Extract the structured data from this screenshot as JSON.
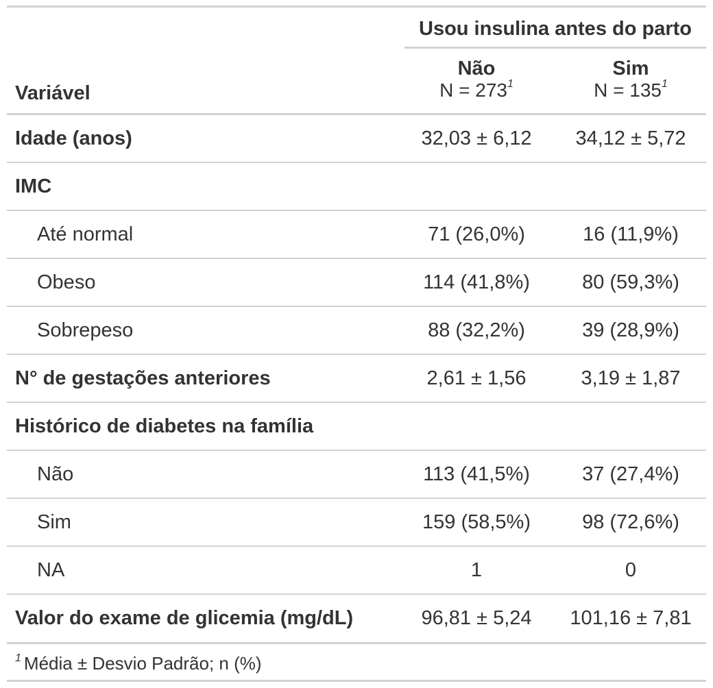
{
  "table": {
    "spanner": "Usou insulina antes do parto",
    "variable_header": "Variável",
    "columns": [
      {
        "name": "Não",
        "n_label": "N = 273",
        "footnote_mark": "1"
      },
      {
        "name": "Sim",
        "n_label": "N = 135",
        "footnote_mark": "1"
      }
    ],
    "rows": [
      {
        "label": "Idade (anos)",
        "style": "bold",
        "nao": "32,03 ± 6,12",
        "sim": "34,12 ± 5,72"
      },
      {
        "label": "IMC",
        "style": "bold",
        "nao": "",
        "sim": ""
      },
      {
        "label": "Até normal",
        "style": "indent",
        "nao": "71 (26,0%)",
        "sim": "16 (11,9%)"
      },
      {
        "label": "Obeso",
        "style": "indent",
        "nao": "114 (41,8%)",
        "sim": "80 (59,3%)"
      },
      {
        "label": "Sobrepeso",
        "style": "indent",
        "nao": "88 (32,2%)",
        "sim": "39 (28,9%)"
      },
      {
        "label": "N° de gestações anteriores",
        "style": "bold",
        "nao": "2,61 ± 1,56",
        "sim": "3,19 ± 1,87"
      },
      {
        "label": "Histórico de diabetes na família",
        "style": "bold",
        "nao": "",
        "sim": ""
      },
      {
        "label": "Não",
        "style": "indent",
        "nao": "113 (41,5%)",
        "sim": "37 (27,4%)"
      },
      {
        "label": "Sim",
        "style": "indent",
        "nao": "159 (58,5%)",
        "sim": "98 (72,6%)"
      },
      {
        "label": "NA",
        "style": "indent",
        "nao": "1",
        "sim": "0"
      },
      {
        "label": "Valor do exame de glicemia (mg/dL)",
        "style": "bold",
        "nao": "96,81 ± 5,24",
        "sim": "101,16 ± 7,81"
      }
    ],
    "footnote": {
      "mark": "1",
      "text": "Média ± Desvio Padrão; n (%)"
    }
  }
}
